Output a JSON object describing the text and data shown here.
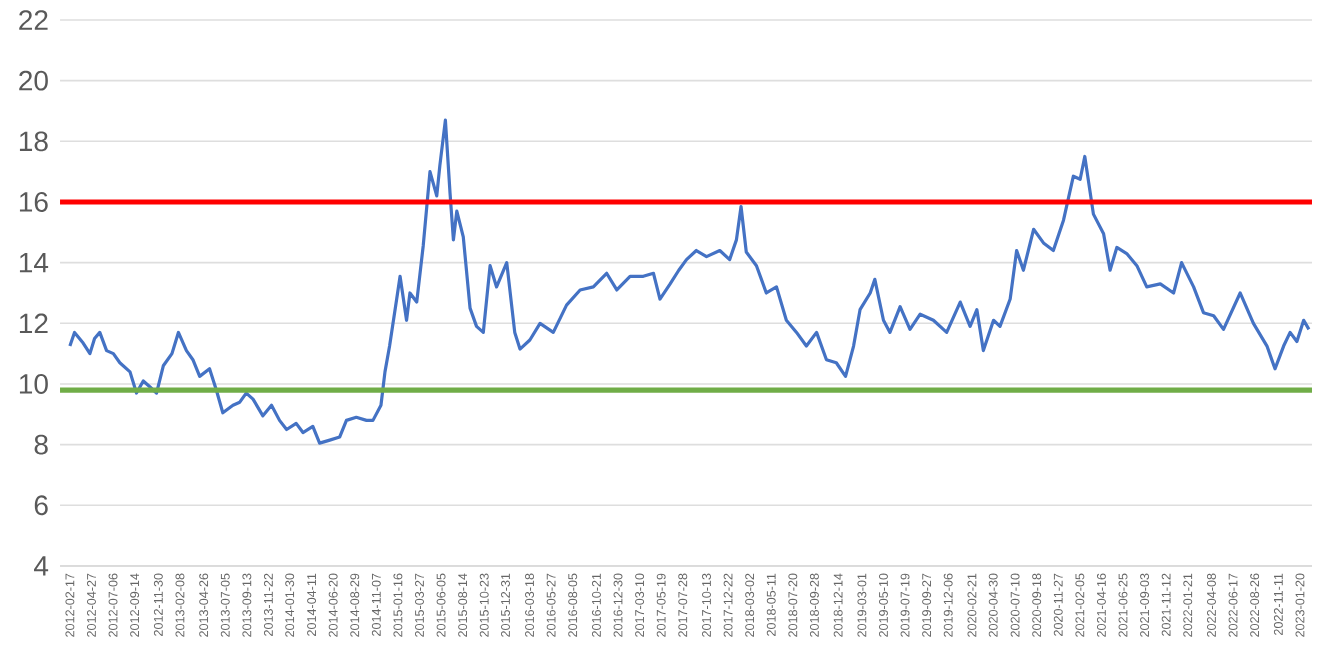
{
  "chart_data": {
    "type": "line",
    "grid": "y",
    "xlim": [
      "2012-01-16",
      "2023-02-28"
    ],
    "ylim": [
      4,
      22
    ],
    "yticks": [
      4,
      6,
      8,
      10,
      12,
      14,
      16,
      18,
      20,
      22
    ],
    "xticks": [
      "2012-02-17",
      "2012-04-27",
      "2012-07-06",
      "2012-09-14",
      "2012-11-30",
      "2013-02-08",
      "2013-04-26",
      "2013-07-05",
      "2013-09-13",
      "2013-11-22",
      "2014-01-30",
      "2014-04-11",
      "2014-06-20",
      "2014-08-29",
      "2014-11-07",
      "2015-01-16",
      "2015-03-27",
      "2015-06-05",
      "2015-08-14",
      "2015-10-23",
      "2015-12-31",
      "2016-03-18",
      "2016-05-27",
      "2016-08-05",
      "2016-10-21",
      "2016-12-30",
      "2017-03-10",
      "2017-05-19",
      "2017-07-28",
      "2017-10-13",
      "2017-12-22",
      "2018-03-02",
      "2018-05-11",
      "2018-07-20",
      "2018-09-28",
      "2018-12-14",
      "2019-03-01",
      "2019-05-10",
      "2019-07-19",
      "2019-09-27",
      "2019-12-06",
      "2020-02-21",
      "2020-04-30",
      "2020-07-10",
      "2020-09-18",
      "2020-11-27",
      "2021-02-05",
      "2021-04-16",
      "2021-06-25",
      "2021-09-03",
      "2021-11-12",
      "2022-01-21",
      "2022-04-08",
      "2022-06-17",
      "2022-08-26",
      "2022-11-11",
      "2023-01-20"
    ],
    "ref_lines": [
      {
        "axis": "y",
        "value": 16,
        "color": "#ff0000"
      },
      {
        "axis": "y",
        "value": 9.8,
        "color": "#70ad47"
      }
    ],
    "series": [
      {
        "color": "#4472c4",
        "x": [
          "2012-02-17",
          "2012-03-03",
          "2012-03-31",
          "2012-04-22",
          "2012-05-07",
          "2012-05-24",
          "2012-06-15",
          "2012-07-07",
          "2012-07-28",
          "2012-08-30",
          "2012-09-20",
          "2012-10-12",
          "2012-11-03",
          "2012-11-24",
          "2012-12-16",
          "2013-01-13",
          "2013-02-03",
          "2013-03-01",
          "2013-03-22",
          "2013-04-13",
          "2013-05-15",
          "2013-06-06",
          "2013-06-27",
          "2013-07-30",
          "2013-08-21",
          "2013-09-11",
          "2013-10-03",
          "2013-11-04",
          "2013-12-02",
          "2013-12-28",
          "2014-01-20",
          "2014-02-20",
          "2014-03-14",
          "2014-04-15",
          "2014-05-07",
          "2014-06-09",
          "2014-07-11",
          "2014-08-02",
          "2014-09-03",
          "2014-10-06",
          "2014-10-27",
          "2014-11-22",
          "2014-12-05",
          "2014-12-20",
          "2015-01-12",
          "2015-01-23",
          "2015-02-13",
          "2015-02-24",
          "2015-03-18",
          "2015-04-08",
          "2015-04-30",
          "2015-05-22",
          "2015-06-01",
          "2015-06-19",
          "2015-07-04",
          "2015-07-15",
          "2015-07-26",
          "2015-08-16",
          "2015-09-07",
          "2015-09-28",
          "2015-10-20",
          "2015-11-11",
          "2015-12-02",
          "2016-01-04",
          "2016-01-30",
          "2016-02-16",
          "2016-03-19",
          "2016-04-21",
          "2016-06-03",
          "2016-07-16",
          "2016-08-29",
          "2016-10-11",
          "2016-11-23",
          "2016-12-26",
          "2017-02-07",
          "2017-03-22",
          "2017-04-24",
          "2017-05-15",
          "2017-06-17",
          "2017-07-15",
          "2017-08-09",
          "2017-09-10",
          "2017-10-13",
          "2017-11-25",
          "2017-12-27",
          "2018-01-18",
          "2018-02-02",
          "2018-02-19",
          "2018-03-24",
          "2018-04-25",
          "2018-05-28",
          "2018-06-29",
          "2018-08-01",
          "2018-09-02",
          "2018-10-05",
          "2018-11-06",
          "2018-12-08",
          "2019-01-07",
          "2019-02-02",
          "2019-02-23",
          "2019-03-28",
          "2019-04-12",
          "2019-05-10",
          "2019-05-31",
          "2019-07-03",
          "2019-08-04",
          "2019-09-06",
          "2019-10-19",
          "2019-12-01",
          "2020-01-14",
          "2020-02-15",
          "2020-03-08",
          "2020-03-29",
          "2020-05-01",
          "2020-05-22",
          "2020-06-24",
          "2020-07-15",
          "2020-08-06",
          "2020-09-08",
          "2020-10-10",
          "2020-11-11",
          "2020-12-14",
          "2021-01-15",
          "2021-02-06",
          "2021-02-21",
          "2021-03-21",
          "2021-04-23",
          "2021-05-14",
          "2021-06-05",
          "2021-07-07",
          "2021-08-09",
          "2021-09-10",
          "2021-10-24",
          "2021-12-06",
          "2022-01-01",
          "2022-02-09",
          "2022-03-13",
          "2022-04-15",
          "2022-05-17",
          "2022-07-10",
          "2022-08-22",
          "2022-10-05",
          "2022-10-31",
          "2022-11-28",
          "2022-12-19",
          "2023-01-10",
          "2023-02-01",
          "2023-02-18"
        ],
        "values": [
          11.25,
          11.7,
          11.35,
          11.0,
          11.5,
          11.7,
          11.1,
          11.0,
          10.7,
          10.4,
          9.7,
          10.1,
          9.9,
          9.7,
          10.6,
          11.0,
          11.7,
          11.1,
          10.8,
          10.25,
          10.5,
          9.8,
          9.05,
          9.3,
          9.4,
          9.7,
          9.5,
          8.95,
          9.3,
          8.8,
          8.5,
          8.7,
          8.4,
          8.6,
          8.05,
          8.15,
          8.25,
          8.8,
          8.9,
          8.8,
          8.8,
          9.3,
          10.4,
          11.25,
          12.8,
          13.55,
          12.1,
          13.0,
          12.7,
          14.55,
          17.0,
          16.2,
          17.2,
          18.7,
          16.3,
          14.75,
          15.7,
          14.85,
          12.5,
          11.9,
          11.7,
          13.9,
          13.2,
          14.0,
          11.7,
          11.15,
          11.45,
          12.0,
          11.7,
          12.6,
          13.1,
          13.2,
          13.65,
          13.1,
          13.55,
          13.55,
          13.65,
          12.8,
          13.3,
          13.75,
          14.1,
          14.4,
          14.2,
          14.4,
          14.1,
          14.75,
          15.85,
          14.35,
          13.9,
          13.0,
          13.2,
          12.1,
          11.7,
          11.25,
          11.7,
          10.8,
          10.7,
          10.25,
          11.25,
          12.45,
          13.0,
          13.45,
          12.1,
          11.7,
          12.55,
          11.8,
          12.3,
          12.1,
          11.7,
          12.7,
          11.9,
          12.45,
          11.1,
          12.1,
          11.9,
          12.8,
          14.4,
          13.75,
          15.1,
          14.65,
          14.4,
          15.4,
          16.85,
          16.75,
          17.5,
          15.6,
          14.95,
          13.75,
          14.5,
          14.3,
          13.9,
          13.2,
          13.3,
          13.0,
          14.0,
          13.2,
          12.35,
          12.25,
          11.8,
          13.0,
          12.0,
          11.25,
          10.5,
          11.25,
          11.7,
          11.4,
          12.1,
          11.8
        ]
      }
    ]
  }
}
